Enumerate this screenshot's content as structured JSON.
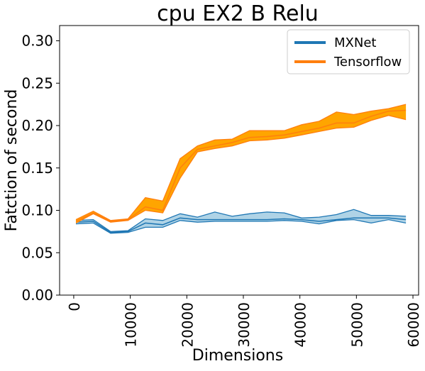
{
  "chart_data": {
    "type": "line",
    "title": "cpu EX2 B Relu",
    "xlabel": "Dimensions",
    "ylabel": "Fatction of second",
    "xlim": [
      -2500,
      61000
    ],
    "ylim": [
      0,
      0.318
    ],
    "x_ticks": [
      0,
      10000,
      20000,
      30000,
      40000,
      50000,
      60000
    ],
    "y_ticks": [
      0.0,
      0.05,
      0.1,
      0.15,
      0.2,
      0.25,
      0.3
    ],
    "x_tick_labels": [
      "0",
      "10000",
      "20000",
      "30000",
      "40000",
      "50000",
      "60000"
    ],
    "y_tick_labels": [
      "0.00",
      "0.05",
      "0.10",
      "0.15",
      "0.20",
      "0.25",
      "0.30"
    ],
    "grid": false,
    "legend_position": "top-right",
    "x": [
      384,
      3456,
      6528,
      9600,
      12672,
      15744,
      18816,
      21888,
      24960,
      28032,
      31104,
      34176,
      37248,
      40320,
      43392,
      46464,
      49536,
      52608,
      55680,
      58752
    ],
    "series": [
      {
        "name": "MXNet",
        "color": "#1f77b4",
        "fill": "#a6cee3",
        "values": [
          0.086,
          0.087,
          0.074,
          0.075,
          0.085,
          0.083,
          0.091,
          0.089,
          0.089,
          0.089,
          0.089,
          0.089,
          0.09,
          0.089,
          0.087,
          0.089,
          0.091,
          0.091,
          0.091,
          0.089
        ],
        "lower": [
          0.084,
          0.085,
          0.073,
          0.074,
          0.08,
          0.08,
          0.088,
          0.086,
          0.087,
          0.087,
          0.087,
          0.087,
          0.088,
          0.087,
          0.084,
          0.088,
          0.089,
          0.085,
          0.089,
          0.085
        ],
        "upper": [
          0.088,
          0.089,
          0.075,
          0.076,
          0.09,
          0.088,
          0.096,
          0.092,
          0.098,
          0.093,
          0.096,
          0.098,
          0.097,
          0.091,
          0.092,
          0.095,
          0.101,
          0.094,
          0.094,
          0.093
        ]
      },
      {
        "name": "Tensorflow",
        "color": "#ff7f0e",
        "fill": "#ffa500",
        "values": [
          0.087,
          0.097,
          0.087,
          0.089,
          0.104,
          0.1,
          0.15,
          0.172,
          0.176,
          0.18,
          0.186,
          0.187,
          0.189,
          0.193,
          0.197,
          0.203,
          0.203,
          0.211,
          0.217,
          0.218
        ],
        "lower": [
          0.085,
          0.096,
          0.086,
          0.088,
          0.1,
          0.097,
          0.138,
          0.169,
          0.173,
          0.176,
          0.182,
          0.183,
          0.185,
          0.189,
          0.193,
          0.197,
          0.198,
          0.206,
          0.212,
          0.207
        ],
        "upper": [
          0.089,
          0.099,
          0.088,
          0.09,
          0.115,
          0.111,
          0.161,
          0.176,
          0.183,
          0.184,
          0.194,
          0.194,
          0.194,
          0.201,
          0.205,
          0.216,
          0.213,
          0.217,
          0.22,
          0.225
        ]
      }
    ]
  }
}
